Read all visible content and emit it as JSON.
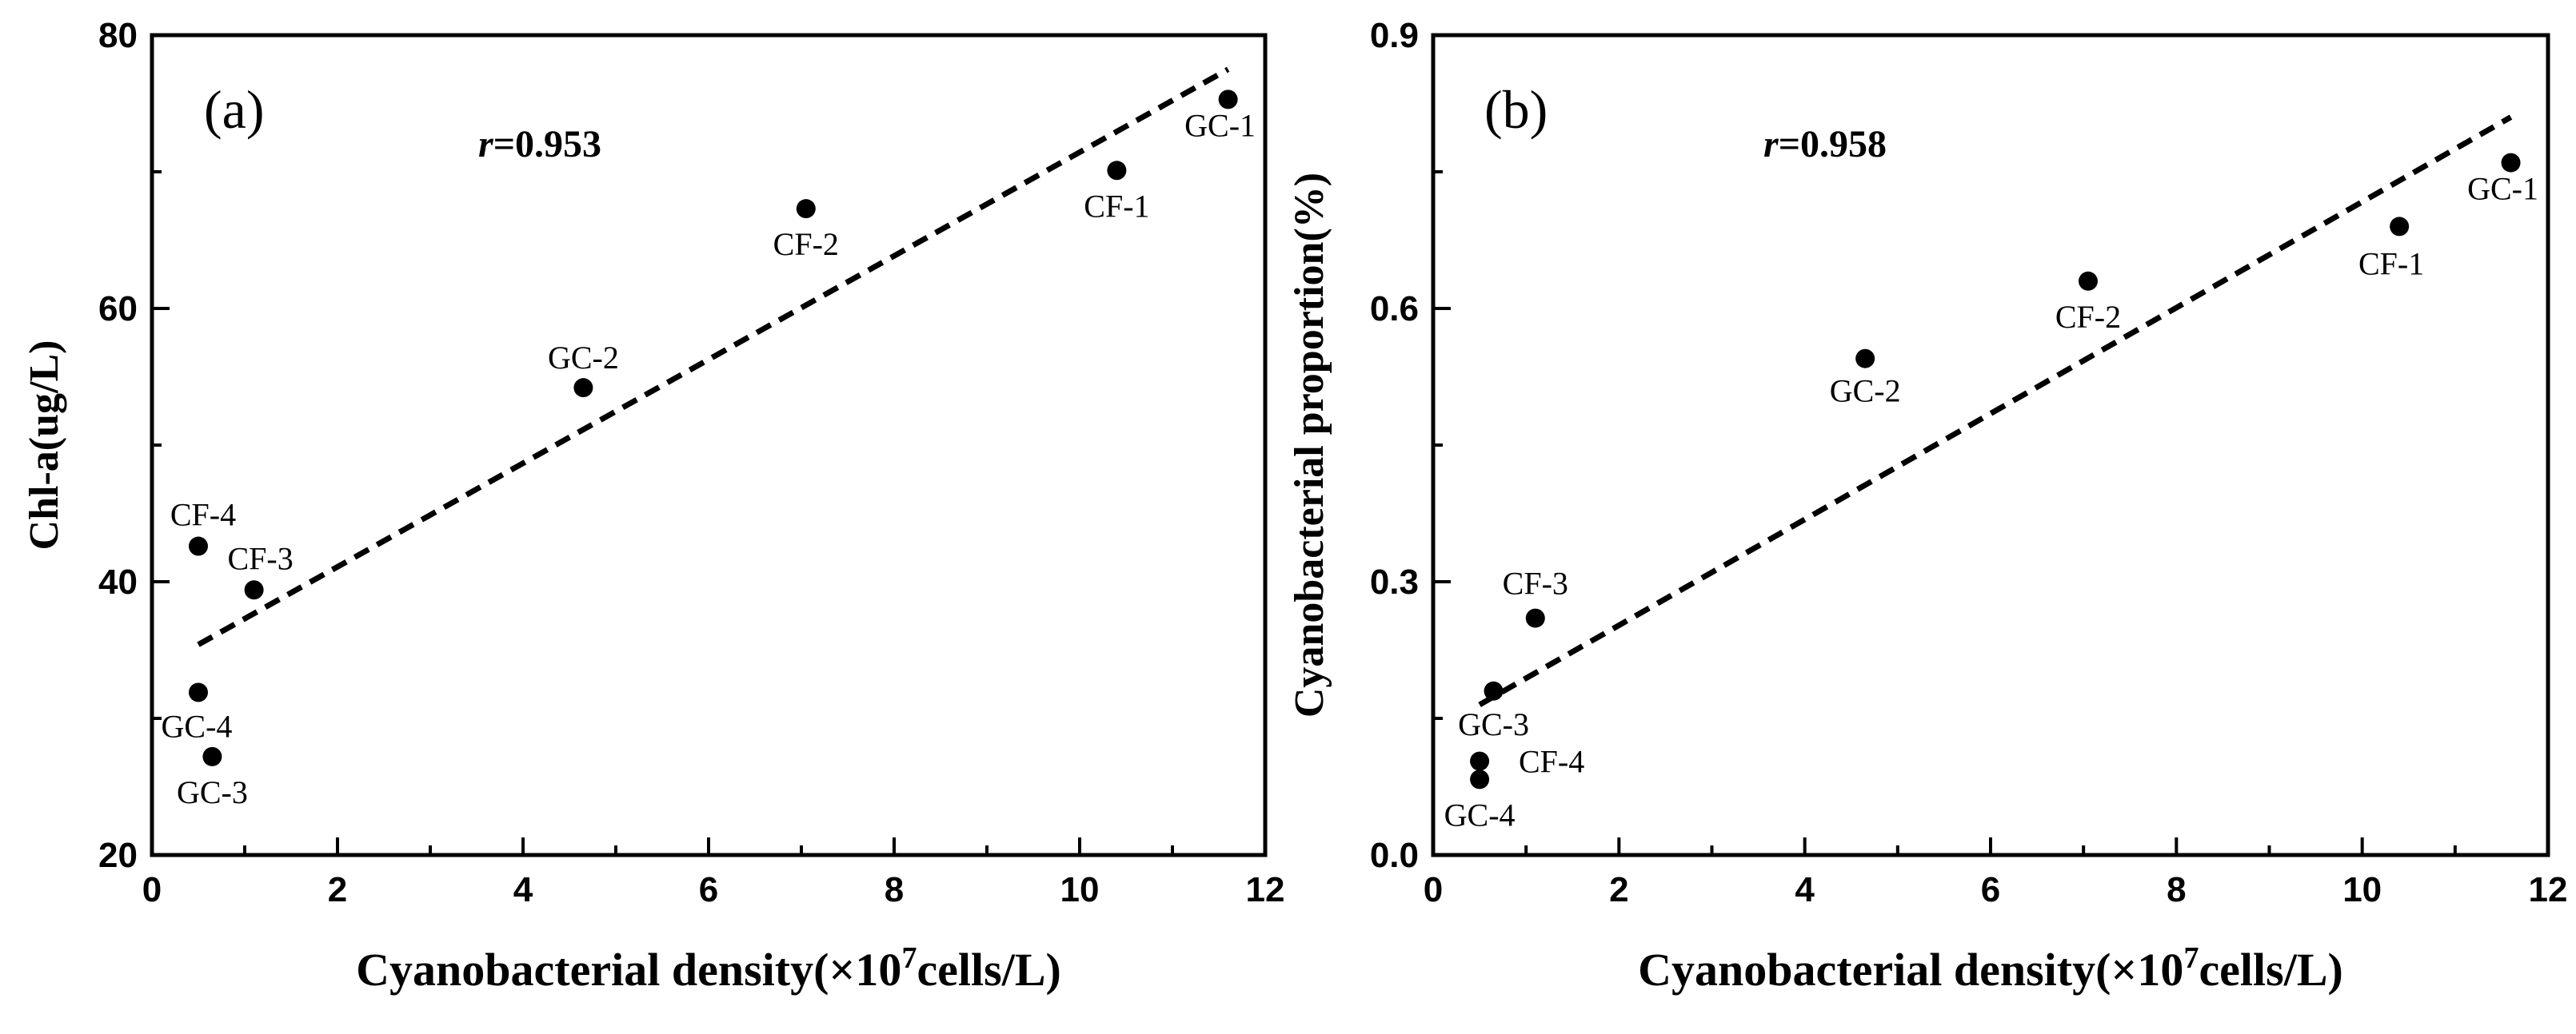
{
  "chart_data": [
    {
      "type": "scatter",
      "panel_label": "(a)",
      "annotation": {
        "symbol": "r",
        "value": "=0.953"
      },
      "xlabel": {
        "main": "Cyanobacterial density(×10",
        "sup": "7",
        "tail": "cells/L)"
      },
      "ylabel": "Chl-a(ug/L)",
      "xlim": [
        0,
        12
      ],
      "ylim": [
        20,
        80
      ],
      "xticks": [
        "0",
        "2",
        "4",
        "6",
        "8",
        "10",
        "12"
      ],
      "yticks": [
        "20",
        "40",
        "60",
        "80"
      ],
      "points": [
        {
          "label": "GC-1",
          "x": 11.6,
          "y": 75.3
        },
        {
          "label": "CF-1",
          "x": 10.4,
          "y": 70.1
        },
        {
          "label": "CF-2",
          "x": 7.05,
          "y": 67.3
        },
        {
          "label": "GC-2",
          "x": 4.65,
          "y": 54.2
        },
        {
          "label": "CF-4",
          "x": 0.5,
          "y": 42.6
        },
        {
          "label": "CF-3",
          "x": 1.1,
          "y": 39.4
        },
        {
          "label": "GC-4",
          "x": 0.5,
          "y": 31.9
        },
        {
          "label": "GC-3",
          "x": 0.65,
          "y": 27.2
        }
      ],
      "fit": {
        "style": "dashed",
        "x": [
          0.5,
          11.6
        ],
        "y": [
          35.4,
          77.5
        ]
      }
    },
    {
      "type": "scatter",
      "panel_label": "(b)",
      "annotation": {
        "symbol": "r",
        "value": "=0.958"
      },
      "xlabel": {
        "main": "Cyanobacterial density(×10",
        "sup": "7",
        "tail": "cells/L)"
      },
      "ylabel": "Cyanobacterial proportion(%)",
      "xlim": [
        0,
        12
      ],
      "ylim": [
        0,
        0.9
      ],
      "xticks": [
        "0",
        "2",
        "4",
        "6",
        "8",
        "10",
        "12"
      ],
      "yticks": [
        "0.0",
        "0.3",
        "0.6",
        "0.9"
      ],
      "points": [
        {
          "label": "GC-1",
          "x": 11.6,
          "y": 0.76
        },
        {
          "label": "CF-1",
          "x": 10.4,
          "y": 0.69
        },
        {
          "label": "CF-2",
          "x": 7.05,
          "y": 0.63
        },
        {
          "label": "GC-2",
          "x": 4.65,
          "y": 0.545
        },
        {
          "label": "CF-3",
          "x": 1.1,
          "y": 0.26
        },
        {
          "label": "GC-3",
          "x": 0.65,
          "y": 0.18
        },
        {
          "label": "CF-4",
          "x": 0.5,
          "y": 0.103
        },
        {
          "label": "GC-4",
          "x": 0.5,
          "y": 0.083
        }
      ],
      "fit": {
        "style": "dashed",
        "x": [
          0.5,
          11.6
        ],
        "y": [
          0.165,
          0.81
        ]
      }
    }
  ]
}
